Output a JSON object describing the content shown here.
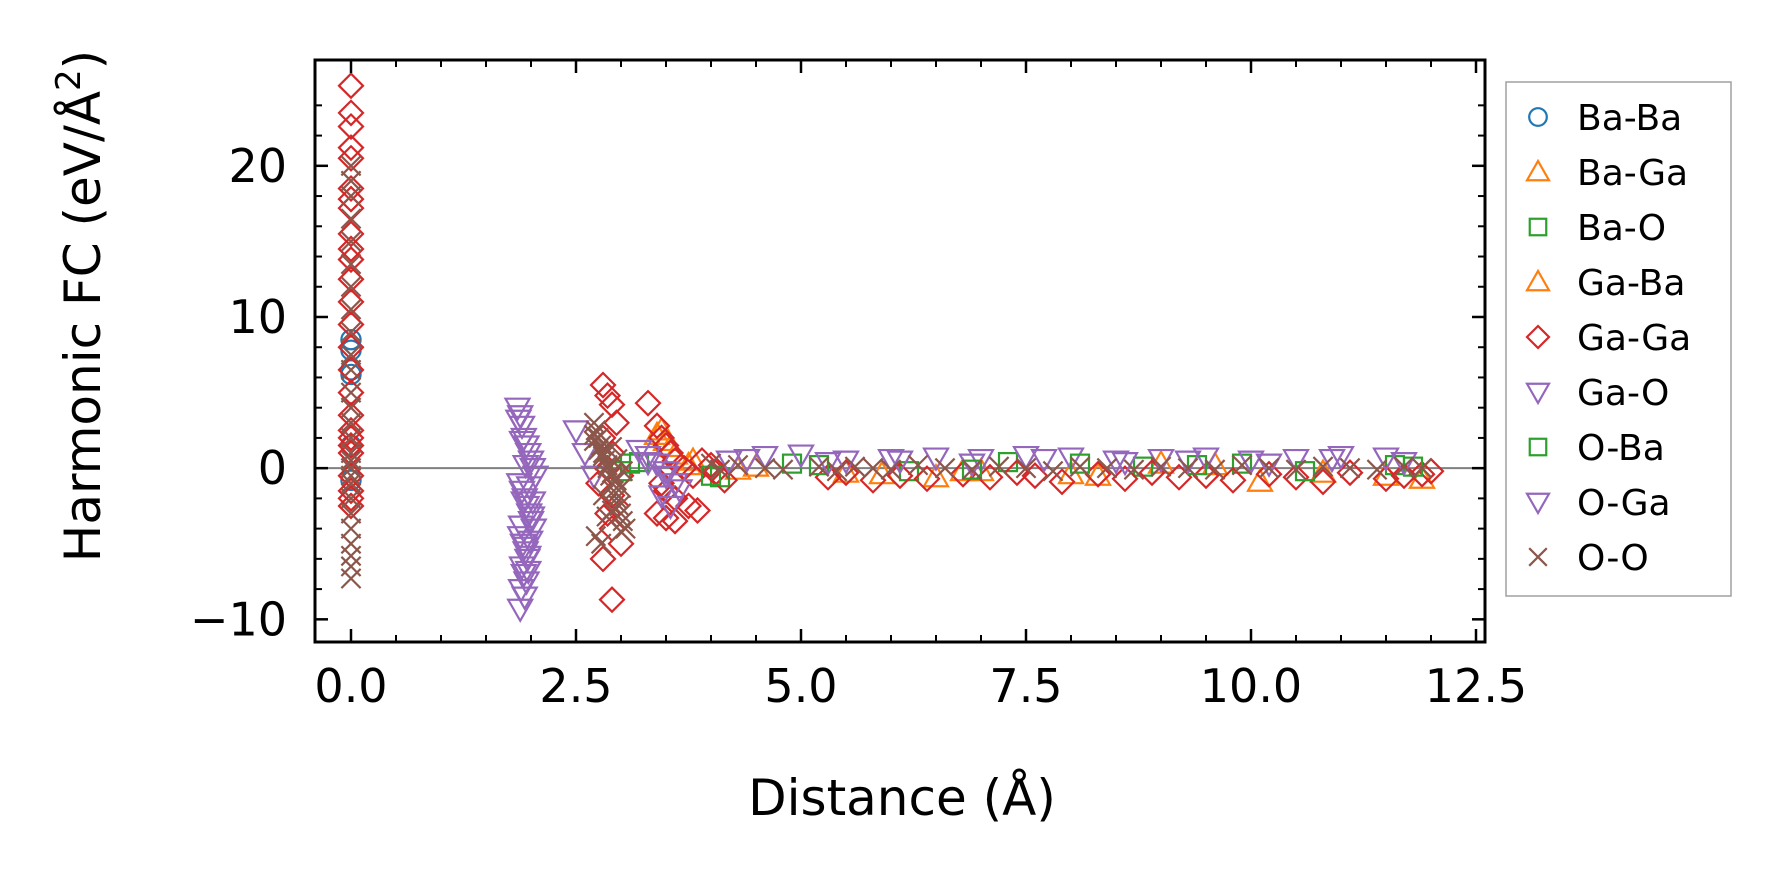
{
  "chart_data": {
    "type": "scatter",
    "title": "",
    "xlabel": "Distance (Å)",
    "ylabel_main": "Harmonic FC (eV/Å",
    "ylabel_sup": "2",
    "ylabel_close": ")",
    "xlim": [
      -0.4,
      12.6
    ],
    "ylim": [
      -11.5,
      27
    ],
    "xticks": [
      0.0,
      2.5,
      5.0,
      7.5,
      10.0,
      12.5
    ],
    "xtick_labels": [
      "0.0",
      "2.5",
      "5.0",
      "7.5",
      "10.0",
      "12.5"
    ],
    "yticks": [
      -10,
      0,
      10,
      20
    ],
    "ytick_labels": [
      "−10",
      "0",
      "10",
      "20"
    ],
    "zero_line": 0,
    "legend_position": "outside-right",
    "colors": {
      "blue": "#1f77b4",
      "orange": "#ff7f0e",
      "green": "#2ca02c",
      "red": "#d62728",
      "purple": "#9467bd",
      "brown": "#8c564b",
      "zero_line": "#808080"
    },
    "series": [
      {
        "name": "Ba-Ba",
        "marker": "circle",
        "color": "#1f77b4",
        "x": [
          0,
          0,
          0,
          0,
          0,
          0
        ],
        "y": [
          8.5,
          7.8,
          6.5,
          6.2,
          1.5,
          -0.8
        ]
      },
      {
        "name": "Ba-Ga",
        "marker": "triangle-up",
        "color": "#ff7f0e",
        "x": [
          3.45,
          3.5,
          3.6,
          3.75,
          4.3,
          5.5,
          6.5,
          6.8,
          8.0,
          9.0,
          10.1,
          11.5,
          11.9
        ],
        "y": [
          2.5,
          1.8,
          0.9,
          0.2,
          -0.1,
          -0.3,
          -0.6,
          -0.2,
          -0.4,
          0.3,
          -0.9,
          -0.5,
          -0.7
        ]
      },
      {
        "name": "Ba-O",
        "marker": "square",
        "color": "#2ca02c",
        "x": [
          3.0,
          3.2,
          4.1,
          4.9,
          6.2,
          7.3,
          8.8,
          9.9,
          11.6
        ],
        "y": [
          -0.2,
          0.4,
          -0.6,
          0.3,
          -0.2,
          0.4,
          0.1,
          0.3,
          0.2
        ]
      },
      {
        "name": "Ga-Ba",
        "marker": "triangle-up",
        "color": "#ff7f0e",
        "x": [
          3.4,
          3.55,
          3.8,
          4.5,
          5.9,
          7.0,
          8.3,
          9.6,
          10.8
        ],
        "y": [
          2.2,
          1.4,
          0.5,
          0.1,
          -0.4,
          -0.2,
          -0.5,
          0.2,
          -0.3
        ]
      },
      {
        "name": "Ga-Ga",
        "marker": "diamond",
        "color": "#d62728",
        "x": [
          0,
          0,
          0,
          0,
          0,
          0,
          0,
          0,
          0,
          0,
          0,
          0,
          0,
          0,
          0,
          0,
          0,
          0,
          0,
          0,
          0,
          0,
          0,
          0,
          0,
          0,
          2.8,
          2.85,
          2.9,
          2.95,
          2.8,
          2.9,
          2.85,
          3.0,
          2.75,
          2.9,
          2.95,
          2.85,
          2.9,
          3.0,
          2.8,
          2.9,
          3.3,
          3.4,
          3.45,
          3.5,
          3.55,
          3.6,
          3.7,
          3.8,
          3.45,
          3.5,
          3.6,
          3.75,
          3.4,
          3.5,
          3.6,
          3.85,
          3.9,
          4.0,
          4.05,
          4.15,
          5.3,
          5.5,
          5.8,
          6.1,
          6.4,
          6.8,
          7.1,
          7.4,
          7.6,
          7.9,
          8.3,
          8.6,
          8.9,
          9.2,
          9.5,
          9.8,
          10.2,
          10.5,
          10.8,
          11.1,
          11.5,
          11.7,
          11.9,
          12.0
        ],
        "y": [
          25.3,
          23.5,
          22.6,
          21.2,
          20.5,
          18.5,
          17.8,
          17.2,
          15.5,
          14.5,
          13.8,
          12.5,
          11.0,
          9.5,
          8.0,
          6.5,
          5.0,
          3.5,
          2.5,
          2.0,
          1.5,
          1.0,
          -0.5,
          -1.5,
          -2.0,
          -2.5,
          5.5,
          4.8,
          4.2,
          3.0,
          2.0,
          1.0,
          0.0,
          -0.5,
          -1.0,
          -1.8,
          -2.5,
          -3.0,
          -4.0,
          -5.0,
          -6.0,
          -8.7,
          4.3,
          2.8,
          2.0,
          1.5,
          1.0,
          0.5,
          0.0,
          -0.5,
          -1.0,
          -1.5,
          -2.0,
          -2.5,
          -3.0,
          -3.3,
          -3.5,
          -2.8,
          0.5,
          0.2,
          -0.3,
          -0.8,
          -0.6,
          -0.3,
          -0.8,
          -0.5,
          -0.7,
          -0.4,
          -0.6,
          -0.3,
          -0.5,
          -0.9,
          -0.4,
          -0.7,
          -0.3,
          -0.6,
          -0.5,
          -0.8,
          -0.4,
          -0.6,
          -0.9,
          -0.3,
          -0.7,
          -0.5,
          -0.4,
          -0.2
        ]
      },
      {
        "name": "Ga-O",
        "marker": "triangle-down",
        "color": "#9467bd",
        "x": [
          1.85,
          1.88,
          1.9,
          1.92,
          1.95,
          1.97,
          2.0,
          2.02,
          2.05,
          1.87,
          1.9,
          1.93,
          1.95,
          1.98,
          2.0,
          2.03,
          1.88,
          1.91,
          1.94,
          1.96,
          1.99,
          2.01,
          1.9,
          1.92,
          1.95,
          1.97,
          1.89,
          1.93,
          1.88,
          1.92,
          2.5,
          2.6,
          2.7,
          3.3,
          3.4,
          3.5,
          3.6,
          3.45,
          3.55,
          4.2,
          4.6,
          5.0,
          5.5,
          6.0,
          6.5,
          7.0,
          7.5,
          8.0,
          8.5,
          9.0,
          9.5,
          10.0,
          10.5,
          11.0,
          11.5
        ],
        "y": [
          4.0,
          3.5,
          2.8,
          2.0,
          1.5,
          1.0,
          0.5,
          0.0,
          -0.5,
          -1.0,
          -1.5,
          -2.0,
          -2.5,
          -3.0,
          -3.5,
          -4.0,
          -4.5,
          -5.0,
          -5.5,
          -6.0,
          -4.8,
          -3.2,
          -6.5,
          -7.0,
          -7.5,
          -5.8,
          -8.0,
          -8.5,
          -9.3,
          -2.2,
          2.5,
          1.0,
          -0.5,
          0.8,
          0.3,
          -0.5,
          -1.0,
          -1.8,
          -2.5,
          0.5,
          0.8,
          0.9,
          0.5,
          0.6,
          0.7,
          0.6,
          0.8,
          0.7,
          0.5,
          0.6,
          0.7,
          0.5,
          0.6,
          0.8,
          0.7
        ]
      },
      {
        "name": "O-Ba",
        "marker": "square",
        "color": "#2ca02c",
        "x": [
          3.1,
          4.0,
          5.2,
          6.9,
          8.1,
          9.4,
          10.6,
          11.8
        ],
        "y": [
          0.3,
          -0.5,
          0.2,
          -0.1,
          0.3,
          0.2,
          -0.2,
          0.1
        ]
      },
      {
        "name": "O-Ga",
        "marker": "triangle-down",
        "color": "#9467bd",
        "x": [
          1.86,
          1.9,
          1.94,
          1.98,
          2.02,
          1.89,
          1.93,
          1.97,
          3.2,
          3.3,
          3.5,
          3.65,
          4.4,
          5.3,
          6.1,
          6.9,
          7.7,
          8.6,
          9.3,
          10.2,
          10.9,
          11.7
        ],
        "y": [
          3.2,
          1.8,
          0.2,
          -1.2,
          -2.2,
          -3.8,
          -5.2,
          -6.8,
          1.2,
          0.4,
          -0.2,
          -1.4,
          0.6,
          0.4,
          0.5,
          0.3,
          0.6,
          0.4,
          0.5,
          0.3,
          0.6,
          0.4
        ]
      },
      {
        "name": "O-O",
        "marker": "x",
        "color": "#8c564b",
        "x": [
          0,
          0,
          0,
          0,
          0,
          0,
          0,
          0,
          0,
          0,
          0,
          0,
          0,
          0,
          0,
          0,
          0,
          0,
          0,
          0,
          0,
          0,
          0,
          0,
          0,
          0,
          0,
          2.7,
          2.72,
          2.75,
          2.78,
          2.8,
          2.82,
          2.85,
          2.88,
          2.9,
          2.92,
          2.95,
          2.98,
          3.0,
          3.02,
          3.05,
          2.7,
          2.75,
          2.8,
          2.85,
          2.9,
          2.95,
          3.0,
          2.72,
          2.78,
          2.84,
          2.9,
          2.96,
          3.02,
          2.7,
          2.8,
          2.9,
          3.0,
          4.0,
          4.1,
          4.3,
          4.6,
          4.8,
          5.2,
          5.4,
          5.6,
          5.8,
          6.0,
          6.3,
          6.6,
          6.9,
          7.2,
          7.5,
          7.8,
          8.1,
          8.4,
          8.7,
          9.0,
          9.3,
          9.6,
          9.9,
          10.2,
          10.5,
          10.8,
          11.1,
          11.4,
          11.7,
          11.9
        ],
        "y": [
          20.0,
          19.0,
          18.0,
          16.5,
          15.0,
          13.5,
          12.0,
          10.5,
          9.0,
          7.5,
          6.5,
          5.0,
          4.0,
          3.0,
          2.0,
          1.0,
          0.5,
          0.0,
          -0.5,
          -1.0,
          -2.0,
          -3.0,
          -4.0,
          -5.0,
          -5.8,
          -6.5,
          -7.3,
          3.0,
          2.5,
          2.0,
          1.5,
          1.0,
          0.5,
          0.0,
          -0.5,
          -1.0,
          -1.5,
          -2.0,
          -2.5,
          -3.0,
          -3.5,
          -4.0,
          1.8,
          1.2,
          0.8,
          0.2,
          -0.3,
          -0.8,
          -1.3,
          -4.5,
          -5.0,
          -3.2,
          -2.8,
          0.6,
          -0.2,
          2.2,
          -1.8,
          1.4,
          -4.2,
          0.3,
          -0.1,
          0.2,
          0.0,
          -0.1,
          0.1,
          -0.2,
          0.1,
          0.0,
          -0.1,
          0.2,
          0.0,
          -0.1,
          0.1,
          0.0,
          -0.2,
          0.1,
          0.0,
          -0.1,
          0.1,
          0.0,
          -0.1,
          0.2,
          0.0,
          -0.1,
          0.1,
          0.0,
          -0.1,
          0.1,
          0.0
        ]
      }
    ]
  }
}
